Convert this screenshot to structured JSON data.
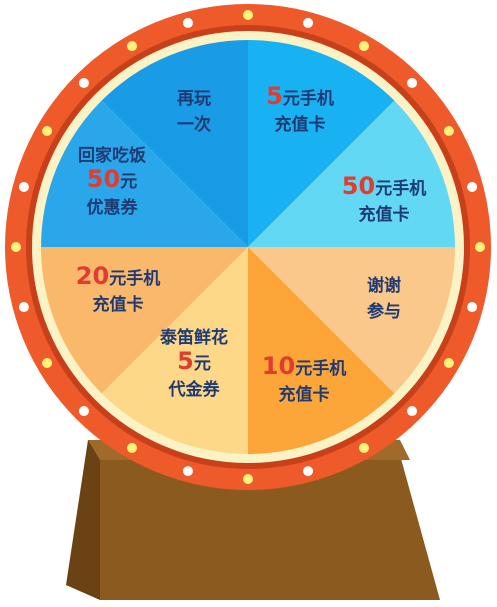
{
  "wheel": {
    "colors": {
      "rim": "#ee5a2a",
      "rim_inner_edge": "#c8401a",
      "inner_ring": "#fbf3c6",
      "light": "#fff27a",
      "light_alt": "#ffffff",
      "number": "#e33b2f",
      "label": "#1f3a73",
      "stand_front": "#8b5a1e",
      "stand_side": "#6b4214",
      "stand_top": "#a06a2a"
    },
    "segments": [
      {
        "id": "top-left",
        "color": "#1a9be6",
        "lines": [
          {
            "t": "再玩"
          },
          {
            "t": "一次"
          }
        ]
      },
      {
        "id": "top-right",
        "color": "#18b2f2",
        "lines": [
          {
            "t": "5",
            "n": true,
            "s": "元手机"
          },
          {
            "t": "充值卡"
          }
        ]
      },
      {
        "id": "right-upper",
        "color": "#62d8f5",
        "lines": [
          {
            "t": "50",
            "n": true,
            "s": "元手机"
          },
          {
            "t": "充值卡"
          }
        ]
      },
      {
        "id": "right-lower",
        "color": "#fbc88b",
        "lines": [
          {
            "t": "谢谢"
          },
          {
            "t": "参与"
          }
        ]
      },
      {
        "id": "bottom-right",
        "color": "#fca63a",
        "lines": [
          {
            "t": "10",
            "n": true,
            "s": "元手机"
          },
          {
            "t": "充值卡"
          }
        ]
      },
      {
        "id": "bottom-left",
        "color": "#fdd889",
        "lines": [
          {
            "t": "泰笛鲜花"
          },
          {
            "t": "5",
            "n": true,
            "s": "元"
          },
          {
            "t": "代金券"
          }
        ]
      },
      {
        "id": "left-lower",
        "color": "#fab86b",
        "lines": [
          {
            "t": "20",
            "n": true,
            "s": "元手机"
          },
          {
            "t": "充值卡"
          }
        ]
      },
      {
        "id": "left-upper",
        "color": "#2aa7ea",
        "lines": [
          {
            "t": "回家吃饭"
          },
          {
            "t": "50",
            "n": true,
            "s": "元"
          },
          {
            "t": "优惠券"
          }
        ]
      }
    ]
  }
}
